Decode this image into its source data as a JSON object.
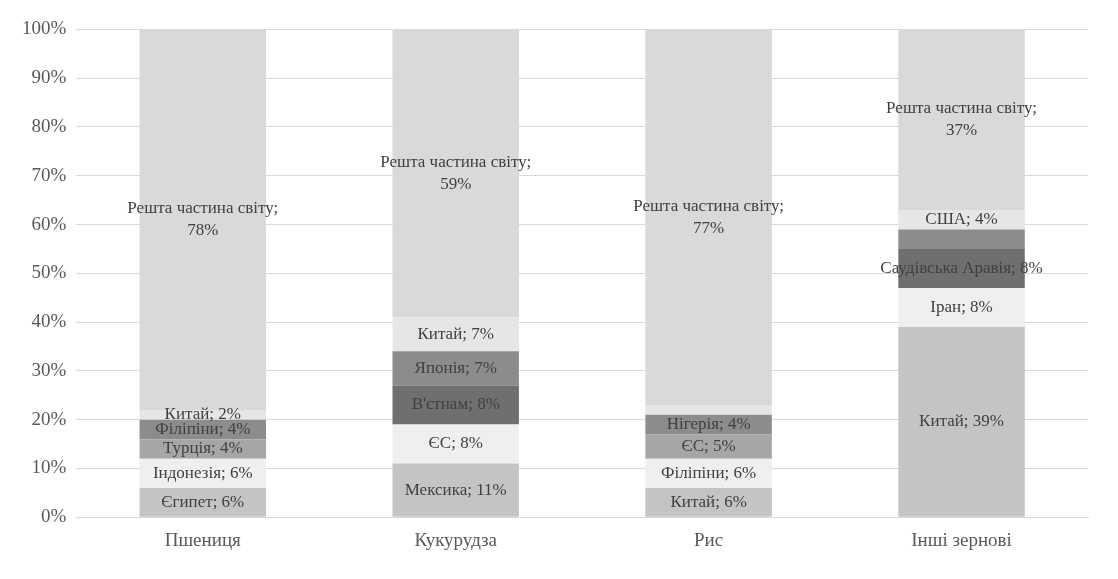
{
  "chart_data": {
    "type": "bar",
    "stacked": true,
    "categories": [
      "Пшениця",
      "Кукурудза",
      "Рис",
      "Інші зернові"
    ],
    "ylim": [
      0,
      100
    ],
    "yticks": [
      {
        "value": 0,
        "label": "0%"
      },
      {
        "value": 10,
        "label": "10%"
      },
      {
        "value": 20,
        "label": "20%"
      },
      {
        "value": 30,
        "label": "30%"
      },
      {
        "value": 40,
        "label": "40%"
      },
      {
        "value": 50,
        "label": "50%"
      },
      {
        "value": 60,
        "label": "60%"
      },
      {
        "value": 70,
        "label": "70%"
      },
      {
        "value": 80,
        "label": "80%"
      },
      {
        "value": 90,
        "label": "90%"
      },
      {
        "value": 100,
        "label": "100%"
      }
    ],
    "grid": "y",
    "legend": false,
    "series": [
      {
        "color": "#c4c4c4",
        "values": [
          6,
          11,
          6,
          39
        ],
        "value_labels": [
          "Єгипет; 6%",
          "Мексика; 11%",
          "Китай; 6%",
          "Китай; 39%"
        ]
      },
      {
        "color": "#efefef",
        "values": [
          6,
          8,
          6,
          8
        ],
        "value_labels": [
          "Індонезія; 6%",
          "ЄС; 8%",
          "Філіпіни; 6%",
          "Іран; 8%"
        ]
      },
      {
        "colors": [
          "#a6a6a6",
          "#6f6f6f",
          "#a6a6a6",
          "#6f6f6f"
        ],
        "values": [
          4,
          8,
          5,
          8
        ],
        "value_labels": [
          "Турція; 4%",
          "В'єтнам; 8%",
          "ЄС; 5%",
          "Саудівська Аравія; 8%"
        ]
      },
      {
        "color": "#8c8c8c",
        "values": [
          4,
          7,
          4,
          4
        ],
        "value_labels": [
          "Філіпіни; 4%",
          "Японія; 7%",
          "Нігерія; 4%",
          null
        ]
      },
      {
        "color": "#e6e6e6",
        "values": [
          2,
          7,
          2,
          4
        ],
        "value_labels": [
          "Китай; 2%",
          "Китай; 7%",
          null,
          "США; 4%"
        ]
      },
      {
        "color": "#d9d9d9",
        "values": [
          78,
          59,
          77,
          37
        ],
        "value_labels": [
          "Решта частина світу; 78%",
          "Решта частина світу; 59%",
          "Решта частина світу; 77%",
          "Решта частина світу; 37%"
        ]
      }
    ]
  }
}
